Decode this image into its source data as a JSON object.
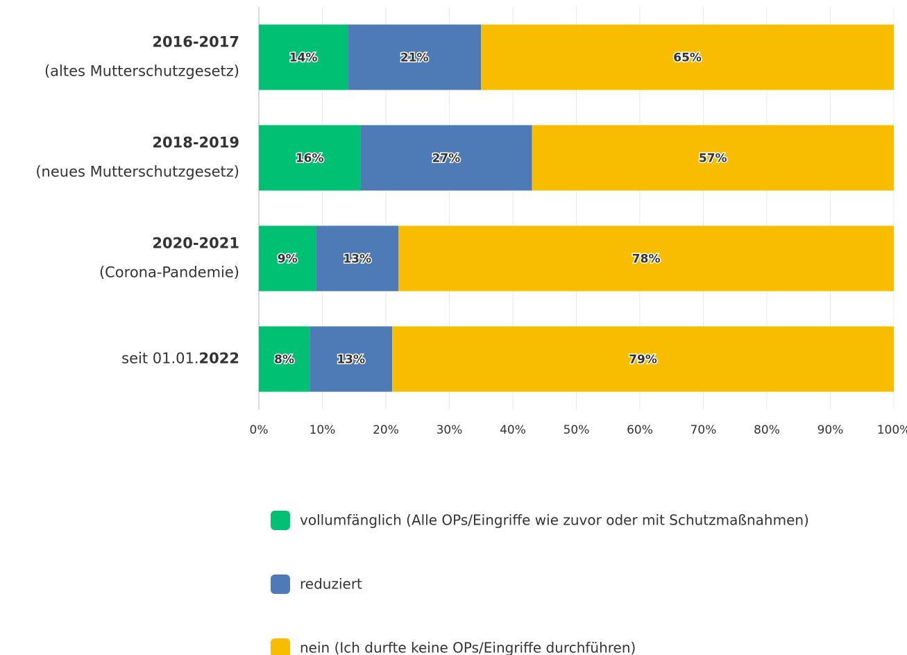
{
  "chart_data": {
    "type": "stacked-bar-horizontal",
    "categories": [
      [
        [
          {
            "text": "2016-2017",
            "bold": true
          }
        ],
        [
          {
            "text": "(altes Mutterschutzgesetz)",
            "bold": false
          }
        ]
      ],
      [
        [
          {
            "text": "2018-2019",
            "bold": true
          }
        ],
        [
          {
            "text": "(neues Mutterschutzgesetz)",
            "bold": false
          }
        ]
      ],
      [
        [
          {
            "text": "2020-2021",
            "bold": true
          }
        ],
        [
          {
            "text": "(Corona-Pandemie)",
            "bold": false
          }
        ]
      ],
      [
        [
          {
            "text": "seit 01.01.",
            "bold": false
          },
          {
            "text": "2022",
            "bold": true
          }
        ]
      ]
    ],
    "series": [
      {
        "name": "vollumfänglich (Alle OPs/Eingriffe wie zuvor oder mit Schutzmaßnahmen)",
        "color": "#00c073",
        "values": [
          14,
          16,
          9,
          8
        ],
        "value_labels": [
          "14%",
          "16%",
          "9%",
          "8%"
        ]
      },
      {
        "name": "reduziert",
        "color": "#4e7ab5",
        "values": [
          21,
          27,
          13,
          13
        ],
        "value_labels": [
          "21%",
          "27%",
          "13%",
          "13%"
        ]
      },
      {
        "name": "nein (Ich durfte keine OPs/Eingriffe durchführen)",
        "color": "#f9bd00",
        "values": [
          65,
          57,
          78,
          79
        ],
        "value_labels": [
          "65%",
          "57%",
          "78%",
          "79%"
        ]
      }
    ],
    "xlim": [
      0,
      100
    ],
    "xticks": [
      {
        "value": 0,
        "label": "0%"
      },
      {
        "value": 10,
        "label": "10%"
      },
      {
        "value": 20,
        "label": "20%"
      },
      {
        "value": 30,
        "label": "30%"
      },
      {
        "value": 40,
        "label": "40%"
      },
      {
        "value": 50,
        "label": "50%"
      },
      {
        "value": 60,
        "label": "60%"
      },
      {
        "value": 70,
        "label": "70%"
      },
      {
        "value": 80,
        "label": "80%"
      },
      {
        "value": 90,
        "label": "90%"
      },
      {
        "value": 100,
        "label": "100%"
      }
    ],
    "grid": true,
    "legend": "bottom"
  }
}
